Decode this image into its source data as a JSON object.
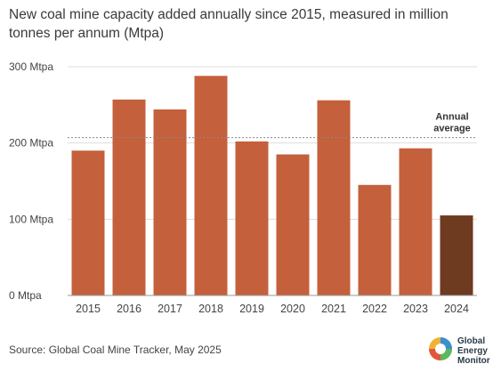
{
  "chart_data": {
    "type": "bar",
    "title": "New coal mine capacity added annually since 2015, measured in million tonnes per annum (Mtpa)",
    "categories": [
      "2015",
      "2016",
      "2017",
      "2018",
      "2019",
      "2020",
      "2021",
      "2022",
      "2023",
      "2024"
    ],
    "values": [
      190,
      257,
      244,
      288,
      202,
      185,
      256,
      145,
      193,
      105
    ],
    "ylim": [
      0,
      300
    ],
    "yticks": [
      {
        "value": 0,
        "label": "0 Mtpa"
      },
      {
        "value": 100,
        "label": "100 Mtpa"
      },
      {
        "value": 200,
        "label": "200 Mtpa"
      },
      {
        "value": 300,
        "label": "300 Mtpa"
      }
    ],
    "average": {
      "value": 207,
      "label_line1": "Annual",
      "label_line2": "average"
    },
    "grid": true,
    "bar_color": "#c4603c",
    "highlight_color": "#6e3a20",
    "highlight_category": "2024",
    "source": "Source: Global Coal Mine Tracker, May 2025"
  },
  "logo": {
    "line1": "Global",
    "line2": "Energy",
    "line3": "Monitor"
  }
}
